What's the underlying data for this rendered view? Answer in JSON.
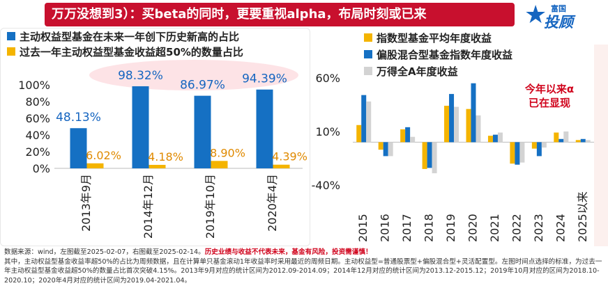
{
  "header": {
    "title": "万万没想到3）：买beta的同时，更要重视alpha，布局时刻或已来",
    "logo_top": "富国",
    "logo_main": "投顾",
    "logo_star": "★"
  },
  "colors": {
    "title_bg": "#c8102e",
    "blue": "#1570c3",
    "gold": "#f4b400",
    "gray": "#d3d3d3",
    "red": "#d0021b"
  },
  "left_legend": [
    {
      "label": "主动权益型基金在未来一年创下历史新高的占比",
      "color": "#1570c3"
    },
    {
      "label": "过去一年主动权益型基金收益超50%的数量占比",
      "color": "#f4b400"
    }
  ],
  "right_legend": [
    {
      "label": "指数型基金平均年度收益",
      "color": "#f4b400"
    },
    {
      "label": "偏股混合型基金指数年度收益",
      "color": "#1570c3"
    },
    {
      "label": "万得全A年度收益",
      "color": "#d3d3d3"
    }
  ],
  "side_note": {
    "line1": "今年以来α",
    "line2": "已在显现"
  },
  "footnote": {
    "p1": "数据来源：wind，左图截至2025-02-07，右图截至2025-02-14。",
    "p1_red": "历史业绩与收益不代表未来，基金有风险，投资需谨慎！",
    "p2": "其中，主动权益型基金收益率超50%的占比为周频数据，且在计算单只基金滚动1年收益率时采用最近的周频日期。主动权益型=普通股票型+偏股混合型+灵活配置型。左图时间点选择的标准，为过去一年主动权益型基金收益超50%的数量占比首次突破4.15%。2013年9月对应的统计区间为2012.09-2014.09；2014年12月对应的统计区间为2013.12-2015.12；2019年10月对应的区间为2018.10-2020.10；2020年4月对应的统计区间为2019.04-2021.04。"
  },
  "chart_data": [
    {
      "type": "bar",
      "categories": [
        "2013年9月",
        "2014年12月",
        "2019年10月",
        "2020年4月"
      ],
      "series": [
        {
          "name": "主动权益型基金在未来一年创下历史新高的占比",
          "values": [
            48.13,
            98.32,
            86.97,
            94.39
          ],
          "labels": [
            "48.13%",
            "98.32%",
            "86.97%",
            "94.39%"
          ]
        },
        {
          "name": "过去一年主动权益型基金收益超50%的数量占比",
          "values": [
            6.02,
            4.18,
            8.9,
            4.39
          ],
          "labels": [
            "6.02%",
            "4.18%",
            "8.90%",
            "4.39%"
          ]
        }
      ],
      "yticks": [
        "100%",
        "80%",
        "60%",
        "40%",
        "20%",
        "0%"
      ],
      "ylim": [
        0,
        100
      ]
    },
    {
      "type": "bar",
      "categories": [
        "2015",
        "2016",
        "2017",
        "2018",
        "2019",
        "2020",
        "2021",
        "2022",
        "2023",
        "2024",
        "2025以来"
      ],
      "series": [
        {
          "name": "指数型基金平均年度收益",
          "values": [
            16,
            -7,
            12,
            -25,
            34,
            31,
            6,
            -20,
            -6,
            9,
            2
          ]
        },
        {
          "name": "偏股混合型基金指数年度收益",
          "values": [
            44,
            -13,
            14,
            -24,
            45,
            55,
            7,
            -21,
            -13,
            3,
            3
          ]
        },
        {
          "name": "万得全A年度收益",
          "values": [
            38,
            -13,
            5,
            -29,
            33,
            25,
            9,
            -19,
            -5,
            10,
            2
          ]
        }
      ],
      "yticks": [
        "60%",
        "10%",
        "-40%"
      ],
      "ylim": [
        -40,
        60
      ]
    }
  ]
}
